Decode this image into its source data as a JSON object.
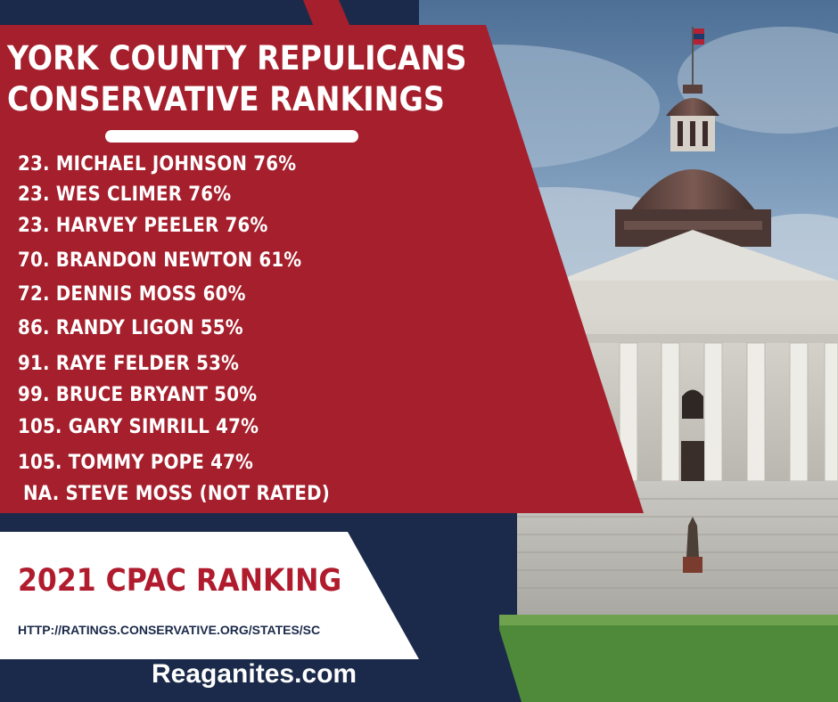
{
  "header": {
    "title_line1": "YORK COUNTY REPULICANS",
    "title_line2": "CONSERVATIVE RANKINGS"
  },
  "rankings": [
    "23. MICHAEL JOHNSON 76%",
    "23. WES CLIMER 76%",
    "23. HARVEY PEELER 76%",
    "70. BRANDON NEWTON 61%",
    "72. DENNIS MOSS 60%",
    "86. RANDY LIGON 55%",
    "91. RAYE FELDER 53%",
    "99. BRUCE BRYANT 50%",
    "105. GARY SIMRILL 47%",
    "105. TOMMY POPE 47%",
    "NA. STEVE MOSS (NOT RATED)"
  ],
  "footer": {
    "cpac_label": "2021 CPAC RANKING",
    "url": "HTTP://RATINGS.CONSERVATIVE.ORG/STATES/SC",
    "site": "Reaganites.com"
  },
  "colors": {
    "navy": "#1b2a4a",
    "red": "#a51f2c",
    "cpac_red": "#b01c2e",
    "white": "#ffffff"
  }
}
